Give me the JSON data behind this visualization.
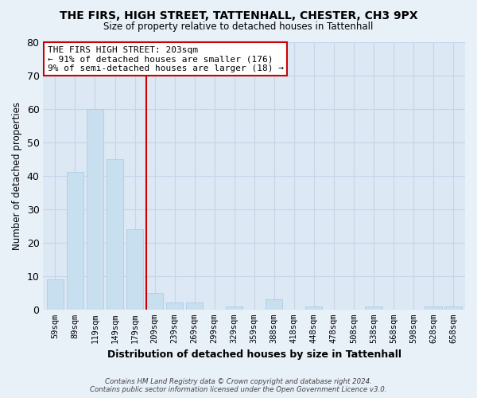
{
  "title": "THE FIRS, HIGH STREET, TATTENHALL, CHESTER, CH3 9PX",
  "subtitle": "Size of property relative to detached houses in Tattenhall",
  "xlabel": "Distribution of detached houses by size in Tattenhall",
  "ylabel": "Number of detached properties",
  "bar_labels": [
    "59sqm",
    "89sqm",
    "119sqm",
    "149sqm",
    "179sqm",
    "209sqm",
    "239sqm",
    "269sqm",
    "299sqm",
    "329sqm",
    "359sqm",
    "388sqm",
    "418sqm",
    "448sqm",
    "478sqm",
    "508sqm",
    "538sqm",
    "568sqm",
    "598sqm",
    "628sqm",
    "658sqm"
  ],
  "bar_values": [
    9,
    41,
    60,
    45,
    24,
    5,
    2,
    2,
    0,
    1,
    0,
    3,
    0,
    1,
    0,
    0,
    1,
    0,
    0,
    1,
    1
  ],
  "bar_color": "#c8dff0",
  "bar_edge_color": "#a8c8e0",
  "highlight_line_color": "#cc0000",
  "annotation_title": "THE FIRS HIGH STREET: 203sqm",
  "annotation_line1": "← 91% of detached houses are smaller (176)",
  "annotation_line2": "9% of semi-detached houses are larger (18) →",
  "annotation_box_facecolor": "#ffffff",
  "annotation_box_edgecolor": "#cc0000",
  "ylim": [
    0,
    80
  ],
  "yticks": [
    0,
    10,
    20,
    30,
    40,
    50,
    60,
    70,
    80
  ],
  "grid_color": "#c8d4e8",
  "plot_bg_color": "#dce8f4",
  "fig_bg_color": "#e8f0f8",
  "footer_line1": "Contains HM Land Registry data © Crown copyright and database right 2024.",
  "footer_line2": "Contains public sector information licensed under the Open Government Licence v3.0."
}
